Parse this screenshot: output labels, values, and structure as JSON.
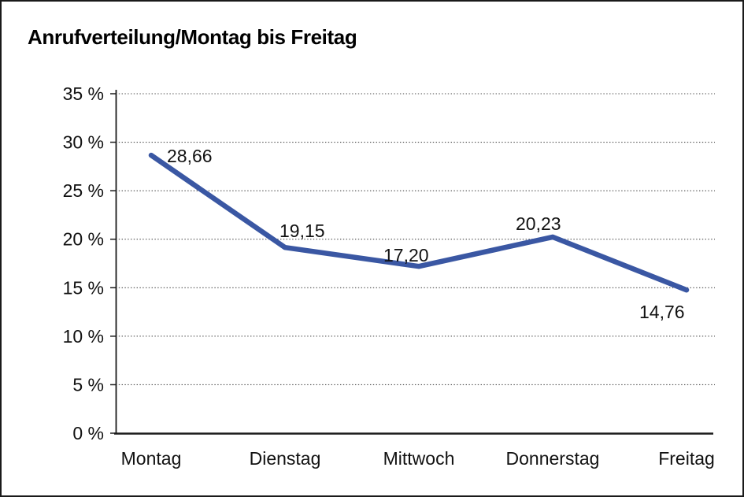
{
  "page": {
    "background": "#ffffff",
    "border_color": "#1a1a1a"
  },
  "chart_data": {
    "type": "line",
    "title": "Anrufverteilung/Montag bis Freitag",
    "categories": [
      "Montag",
      "Dienstag",
      "Mittwoch",
      "Donnerstag",
      "Freitag"
    ],
    "values": [
      28.66,
      19.15,
      17.2,
      20.23,
      14.76
    ],
    "value_labels": [
      "28,66",
      "19,15",
      "17,20",
      "20,23",
      "14,76"
    ],
    "xlabel": "",
    "ylabel": "",
    "ylim": [
      0,
      35
    ],
    "y_ticks": [
      0,
      5,
      10,
      15,
      20,
      25,
      30,
      35
    ],
    "y_tick_labels": [
      "0 %",
      "5 %",
      "10 %",
      "15 %",
      "20 %",
      "25 %",
      "30 %",
      "35 %"
    ],
    "grid": "horizontal-dotted",
    "legend_position": "none",
    "line_color": "#3A57A3",
    "axis_color": "#1a1a1a",
    "gridline_color": "#4a4a4a",
    "label_color": "#111111"
  }
}
